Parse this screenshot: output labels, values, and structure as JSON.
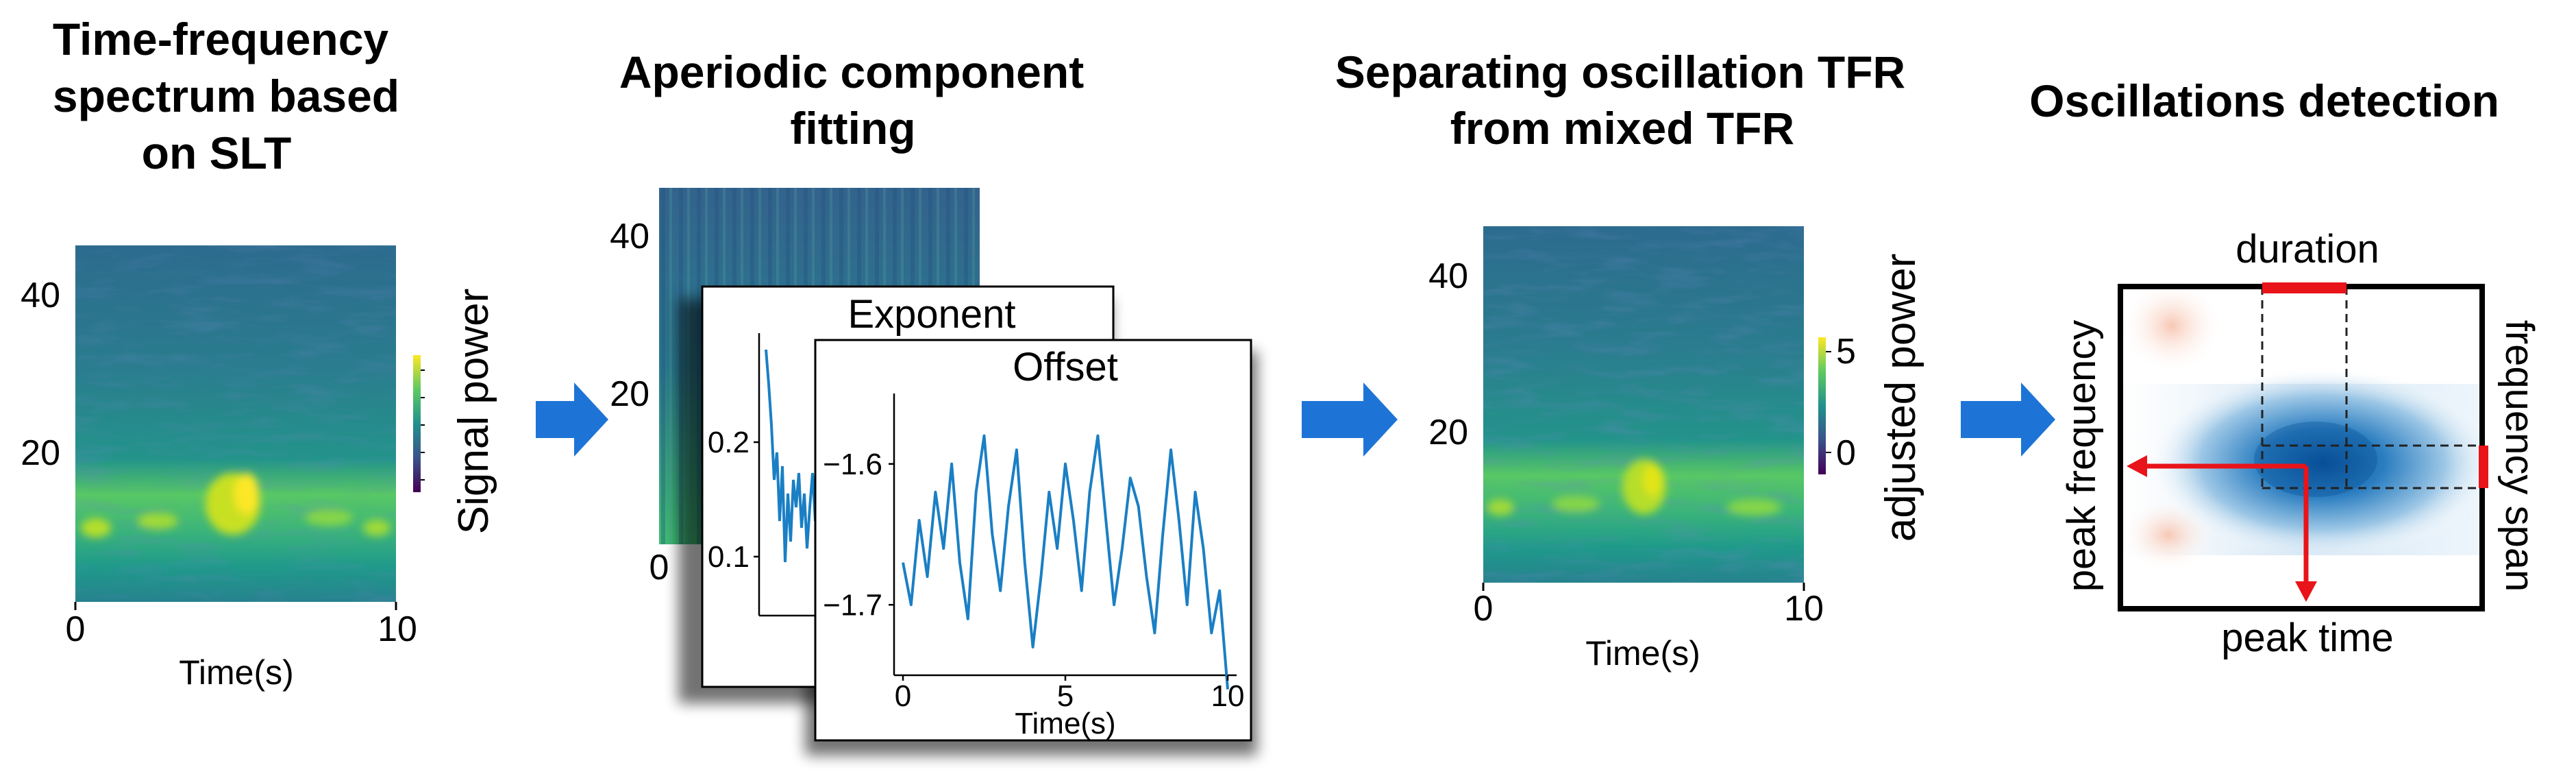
{
  "panels": {
    "p1": {
      "title_lines": [
        "Time-frequency",
        "spectrum based",
        "on SLT"
      ],
      "y_ticks": [
        "40",
        "20"
      ],
      "x_ticks": [
        "0",
        "10"
      ],
      "xlabel": "Time(s)",
      "colorbar_label": "Signal power"
    },
    "p2": {
      "title_lines": [
        "Aperiodic component",
        "fitting"
      ],
      "back_y_ticks": [
        "40",
        "20",
        "0"
      ],
      "exponent": {
        "title": "Exponent",
        "y_ticks": [
          "0.2",
          "0.1"
        ]
      },
      "offset": {
        "title": "Offset",
        "y_ticks": [
          "−1.6",
          "−1.7"
        ],
        "x_ticks": [
          "0",
          "5",
          "10"
        ],
        "xlabel": "Time(s)"
      }
    },
    "p3": {
      "title_lines": [
        "Separating oscillation TFR",
        "from mixed TFR"
      ],
      "y_ticks": [
        "40",
        "20"
      ],
      "x_ticks": [
        "0",
        "10"
      ],
      "xlabel": "Time(s)",
      "colorbar_label": "adjusted power",
      "colorbar_ticks": [
        "5",
        "0"
      ]
    },
    "p4": {
      "title": "Oscillations detection",
      "top_label": "duration",
      "bottom_label": "peak time",
      "left_label": "peak frequency",
      "right_label": "frequency span"
    }
  },
  "colors": {
    "arrow": "#1e74d6",
    "trace": "#1a7fc4",
    "marker": "#e8141a"
  },
  "chart_data": [
    {
      "type": "heatmap",
      "title": "Time-frequency spectrum based on SLT",
      "xlabel": "Time(s)",
      "ylabel": "",
      "xlim": [
        0,
        10
      ],
      "ylim": [
        0,
        45
      ],
      "colorbar": "Signal power"
    },
    {
      "type": "line",
      "title": "Exponent",
      "xlim": [
        0,
        10
      ],
      "y_ticks": [
        0.1,
        0.2
      ]
    },
    {
      "type": "line",
      "title": "Offset",
      "xlabel": "Time(s)",
      "xlim": [
        0,
        10
      ],
      "ylim": [
        -1.75,
        -1.55
      ],
      "y_ticks": [
        -1.7,
        -1.6
      ],
      "series": [
        {
          "name": "Offset",
          "x": [
            0,
            0.25,
            0.5,
            0.75,
            1,
            1.25,
            1.5,
            1.75,
            2,
            2.25,
            2.5,
            2.75,
            3,
            3.25,
            3.5,
            3.75,
            4,
            4.25,
            4.5,
            4.75,
            5,
            5.25,
            5.5,
            5.75,
            6,
            6.25,
            6.5,
            6.75,
            7,
            7.25,
            7.5,
            7.75,
            8,
            8.25,
            8.5,
            8.75,
            9,
            9.25,
            9.5,
            9.75,
            10
          ],
          "values": [
            -1.67,
            -1.7,
            -1.64,
            -1.68,
            -1.62,
            -1.66,
            -1.6,
            -1.67,
            -1.71,
            -1.62,
            -1.58,
            -1.65,
            -1.69,
            -1.63,
            -1.59,
            -1.67,
            -1.73,
            -1.68,
            -1.62,
            -1.66,
            -1.6,
            -1.64,
            -1.69,
            -1.62,
            -1.58,
            -1.64,
            -1.7,
            -1.66,
            -1.61,
            -1.63,
            -1.68,
            -1.72,
            -1.65,
            -1.59,
            -1.64,
            -1.7,
            -1.62,
            -1.66,
            -1.72,
            -1.69,
            -1.76
          ]
        }
      ]
    },
    {
      "type": "heatmap",
      "title": "Separating oscillation TFR from mixed TFR",
      "xlabel": "Time(s)",
      "xlim": [
        0,
        10
      ],
      "ylim": [
        0,
        45
      ],
      "colorbar": "adjusted power",
      "colorbar_ticks": [
        0,
        5
      ]
    }
  ]
}
